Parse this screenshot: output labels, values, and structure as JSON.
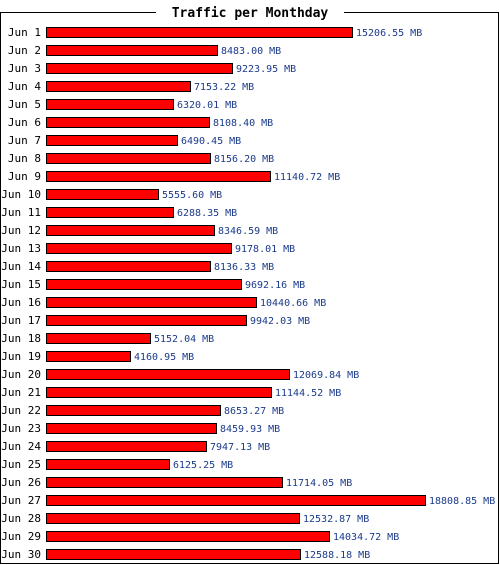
{
  "chart_data": {
    "type": "bar",
    "orientation": "horizontal",
    "title": "Traffic per Monthday",
    "unit": "MB",
    "categories": [
      "Jun 1",
      "Jun 2",
      "Jun 3",
      "Jun 4",
      "Jun 5",
      "Jun 6",
      "Jun 7",
      "Jun 8",
      "Jun 9",
      "Jun 10",
      "Jun 11",
      "Jun 12",
      "Jun 13",
      "Jun 14",
      "Jun 15",
      "Jun 16",
      "Jun 17",
      "Jun 18",
      "Jun 19",
      "Jun 20",
      "Jun 21",
      "Jun 22",
      "Jun 23",
      "Jun 24",
      "Jun 25",
      "Jun 26",
      "Jun 27",
      "Jun 28",
      "Jun 29",
      "Jun 30"
    ],
    "values": [
      15206.55,
      8483.0,
      9223.95,
      7153.22,
      6320.01,
      8108.4,
      6490.45,
      8156.2,
      11140.72,
      5555.6,
      6288.35,
      8346.59,
      9178.01,
      8136.33,
      9692.16,
      10440.66,
      9942.03,
      5152.04,
      4160.95,
      12069.84,
      11144.52,
      8653.27,
      8459.93,
      7947.13,
      6125.25,
      11714.05,
      18808.85,
      12532.87,
      14034.72,
      12588.18
    ],
    "value_labels": [
      "15206.55 MB",
      "8483.00 MB",
      "9223.95 MB",
      "7153.22 MB",
      "6320.01 MB",
      "8108.40 MB",
      "6490.45 MB",
      "8156.20 MB",
      "11140.72 MB",
      "5555.60 MB",
      "6288.35 MB",
      "8346.59 MB",
      "9178.01 MB",
      "8136.33 MB",
      "9692.16 MB",
      "10440.66 MB",
      "9942.03 MB",
      "5152.04 MB",
      "4160.95 MB",
      "12069.84 MB",
      "11144.52 MB",
      "8653.27 MB",
      "8459.93 MB",
      "7947.13 MB",
      "6125.25 MB",
      "11714.05 MB",
      "18808.85 MB",
      "12532.87 MB",
      "14034.72 MB",
      "12588.18 MB"
    ],
    "grid": false,
    "legend": "none",
    "colors": {
      "bar": "#ff0000",
      "bar_outline": "#000000",
      "value_text": "#1a3a8a",
      "frame": "#000000"
    }
  }
}
